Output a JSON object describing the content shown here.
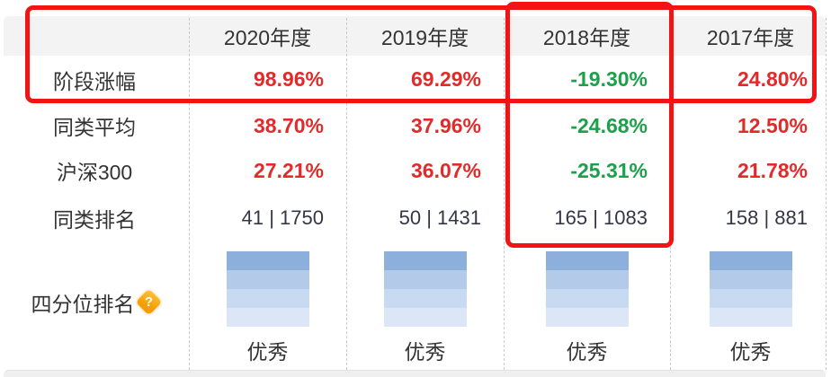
{
  "header": {
    "years": [
      "2020年度",
      "2019年度",
      "2018年度",
      "2017年度"
    ]
  },
  "rows": {
    "growth": {
      "label": "阶段涨幅",
      "values": [
        "98.96%",
        "69.29%",
        "-19.30%",
        "24.80%"
      ]
    },
    "peer_avg": {
      "label": "同类平均",
      "values": [
        "38.70%",
        "37.96%",
        "-24.68%",
        "12.50%"
      ]
    },
    "hs300": {
      "label": "沪深300",
      "values": [
        "27.21%",
        "36.07%",
        "-25.31%",
        "21.78%"
      ]
    },
    "peer_rank": {
      "label": "同类排名",
      "values": [
        "41 | 1750",
        "50 | 1431",
        "165 | 1083",
        "158 | 881"
      ]
    },
    "quartile": {
      "label": "四分位排名",
      "ratings": [
        "优秀",
        "优秀",
        "优秀",
        "优秀"
      ]
    }
  },
  "help_icon": {
    "glyph": "?"
  },
  "colors": {
    "gain_text": "#e12b2b",
    "loss_text": "#1ca04a",
    "annotation_red": "#f21414",
    "header_bg": "#f3f3f4",
    "quartile_bands": [
      "#8cafdc",
      "#b3cbe9",
      "#c8daf1",
      "#dbe7f6"
    ]
  }
}
